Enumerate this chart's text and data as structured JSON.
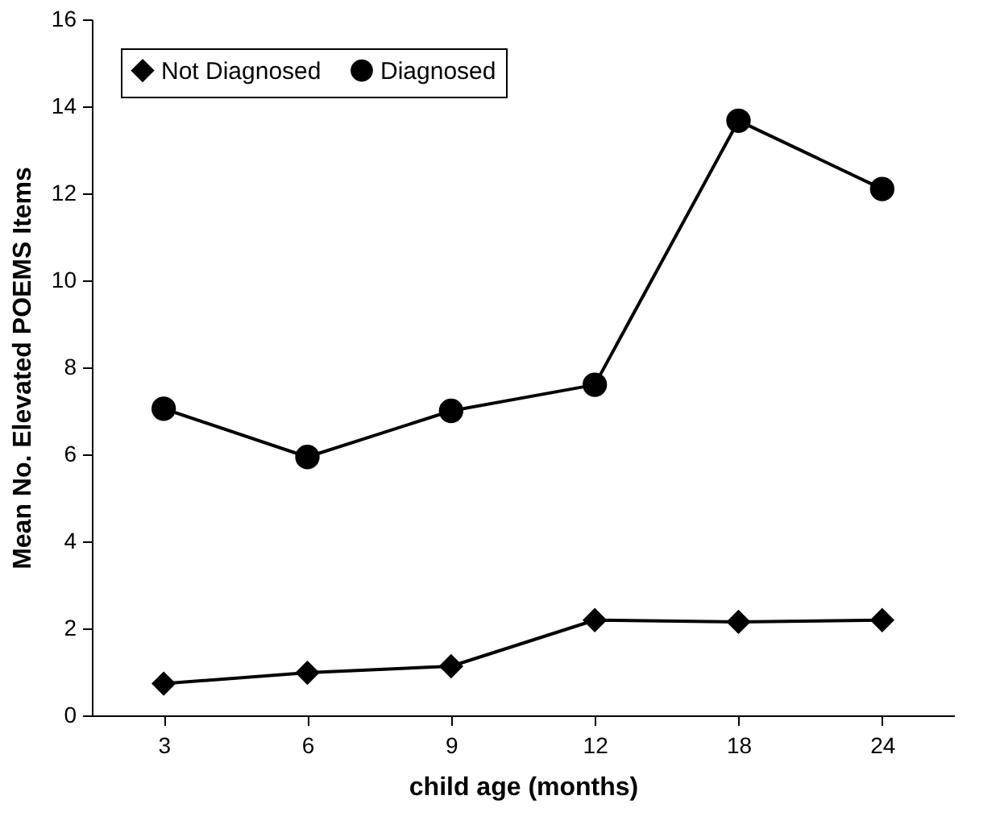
{
  "chart_data": {
    "type": "line",
    "xlabel": "child age (months)",
    "ylabel": "Mean No. Elevated POEMS Items",
    "categories": [
      "3",
      "6",
      "9",
      "12",
      "18",
      "24"
    ],
    "series": [
      {
        "name": "Not Diagnosed",
        "color": "#000000",
        "marker": "diamond",
        "values": [
          0.73,
          0.98,
          1.13,
          2.19,
          2.15,
          2.19
        ]
      },
      {
        "name": "Diagnosed",
        "color": "#000000",
        "marker": "circle",
        "values": [
          7.05,
          5.94,
          7.0,
          7.6,
          13.67,
          12.1
        ]
      }
    ],
    "ylim": [
      0,
      16
    ],
    "yticks": [
      0,
      2,
      4,
      6,
      8,
      10,
      12,
      14,
      16
    ],
    "grid": false,
    "legend": "top left",
    "line_style": "solid"
  }
}
